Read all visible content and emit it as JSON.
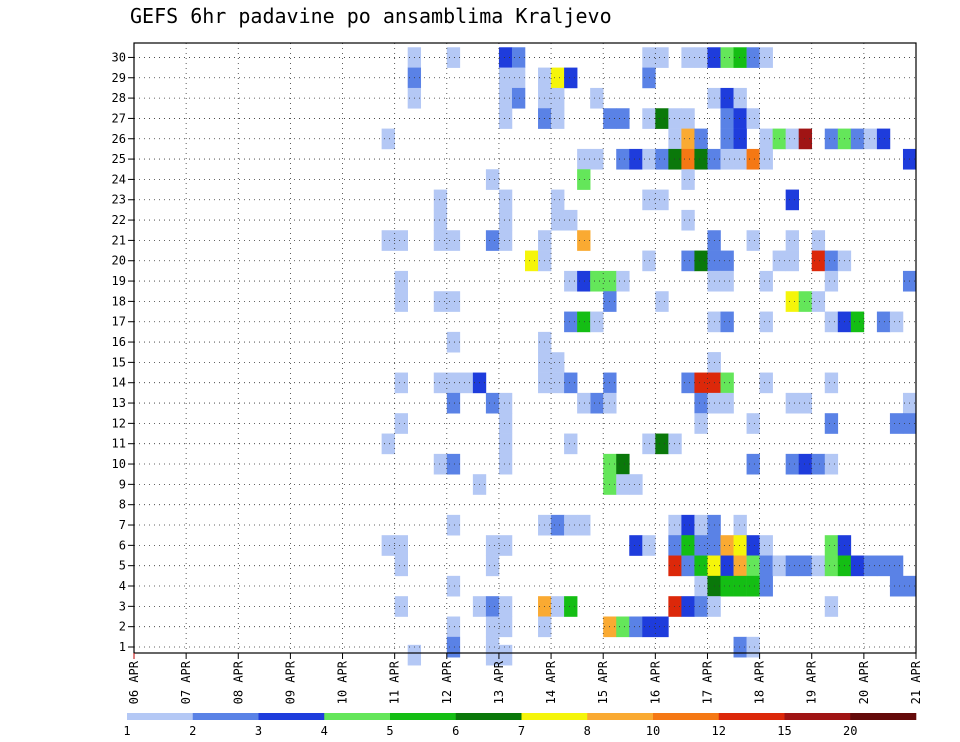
{
  "chart_data": {
    "type": "heatmap",
    "title": "GEFS 6hr padavine po ansamblima Kraljevo",
    "x_tick_labels": [
      "06 APR",
      "07 APR",
      "08 APR",
      "09 APR",
      "10 APR",
      "11 APR",
      "12 APR",
      "13 APR",
      "14 APR",
      "15 APR",
      "16 APR",
      "17 APR",
      "18 APR",
      "19 APR",
      "20 APR",
      "21 APR"
    ],
    "y_tick_labels": [
      "1",
      "2",
      "3",
      "4",
      "5",
      "6",
      "7",
      "8",
      "9",
      "10",
      "11",
      "12",
      "13",
      "14",
      "15",
      "16",
      "17",
      "18",
      "19",
      "20",
      "21",
      "22",
      "23",
      "24",
      "25",
      "26",
      "27",
      "28",
      "29",
      "30"
    ],
    "members": 30,
    "steps_per_day": 4,
    "first_day": "06 APR",
    "grid": "dotted",
    "legend": {
      "position": "bottom",
      "labels": [
        "1",
        "2",
        "3",
        "4",
        "5",
        "6",
        "7",
        "8",
        "10",
        "12",
        "15",
        "20"
      ],
      "colors": [
        "#b4c8f5",
        "#5a82e6",
        "#1e3cdc",
        "#64e65a",
        "#14be14",
        "#0a780a",
        "#f5f50a",
        "#faaa32",
        "#f57814",
        "#dc280a",
        "#a01414",
        "#640a0a"
      ]
    },
    "level_colors": {
      "1": "#b4c8f5",
      "2": "#5a82e6",
      "3": "#1e3cdc",
      "4": "#64e65a",
      "5": "#14be14",
      "6": "#0a780a",
      "7": "#f5f50a",
      "8": "#faaa32",
      "9": "#f57814",
      "10": "#dc280a",
      "11": "#a01414"
    },
    "cells": [
      [
        30,
        21,
        1
      ],
      [
        30,
        24,
        1
      ],
      [
        30,
        28,
        3
      ],
      [
        30,
        29,
        2
      ],
      [
        30,
        39,
        1
      ],
      [
        30,
        40,
        1
      ],
      [
        30,
        42,
        1
      ],
      [
        30,
        43,
        1
      ],
      [
        30,
        44,
        3
      ],
      [
        30,
        45,
        4
      ],
      [
        30,
        46,
        5
      ],
      [
        30,
        47,
        2
      ],
      [
        30,
        48,
        1
      ],
      [
        29,
        21,
        2
      ],
      [
        29,
        28,
        1
      ],
      [
        29,
        29,
        1
      ],
      [
        29,
        31,
        1
      ],
      [
        29,
        32,
        7
      ],
      [
        29,
        33,
        3
      ],
      [
        29,
        39,
        2
      ],
      [
        28,
        21,
        1
      ],
      [
        28,
        28,
        1
      ],
      [
        28,
        29,
        2
      ],
      [
        28,
        31,
        1
      ],
      [
        28,
        32,
        1
      ],
      [
        28,
        35,
        1
      ],
      [
        28,
        44,
        1
      ],
      [
        28,
        45,
        3
      ],
      [
        28,
        46,
        1
      ],
      [
        27,
        28,
        1
      ],
      [
        27,
        31,
        2
      ],
      [
        27,
        32,
        1
      ],
      [
        27,
        36,
        2
      ],
      [
        27,
        37,
        2
      ],
      [
        27,
        39,
        1
      ],
      [
        27,
        40,
        6
      ],
      [
        27,
        41,
        1
      ],
      [
        27,
        42,
        1
      ],
      [
        27,
        45,
        2
      ],
      [
        27,
        46,
        3
      ],
      [
        27,
        47,
        1
      ],
      [
        26,
        19,
        1
      ],
      [
        26,
        41,
        1
      ],
      [
        26,
        42,
        8
      ],
      [
        26,
        43,
        2
      ],
      [
        26,
        45,
        2
      ],
      [
        26,
        46,
        3
      ],
      [
        26,
        48,
        1
      ],
      [
        26,
        49,
        4
      ],
      [
        26,
        50,
        1
      ],
      [
        26,
        51,
        11
      ],
      [
        26,
        53,
        2
      ],
      [
        26,
        54,
        4
      ],
      [
        26,
        55,
        2
      ],
      [
        26,
        56,
        1
      ],
      [
        26,
        57,
        3
      ],
      [
        25,
        34,
        1
      ],
      [
        25,
        35,
        1
      ],
      [
        25,
        37,
        2
      ],
      [
        25,
        38,
        3
      ],
      [
        25,
        39,
        1
      ],
      [
        25,
        40,
        2
      ],
      [
        25,
        41,
        6
      ],
      [
        25,
        42,
        9
      ],
      [
        25,
        43,
        6
      ],
      [
        25,
        44,
        2
      ],
      [
        25,
        45,
        1
      ],
      [
        25,
        46,
        1
      ],
      [
        25,
        47,
        9
      ],
      [
        25,
        48,
        1
      ],
      [
        25,
        59,
        3
      ],
      [
        24,
        27,
        1
      ],
      [
        24,
        34,
        4
      ],
      [
        24,
        42,
        1
      ],
      [
        23,
        23,
        1
      ],
      [
        23,
        28,
        1
      ],
      [
        23,
        32,
        1
      ],
      [
        23,
        39,
        1
      ],
      [
        23,
        40,
        1
      ],
      [
        23,
        50,
        3
      ],
      [
        22,
        23,
        1
      ],
      [
        22,
        28,
        1
      ],
      [
        22,
        32,
        1
      ],
      [
        22,
        33,
        1
      ],
      [
        22,
        42,
        1
      ],
      [
        21,
        19,
        1
      ],
      [
        21,
        20,
        1
      ],
      [
        21,
        23,
        1
      ],
      [
        21,
        24,
        1
      ],
      [
        21,
        27,
        2
      ],
      [
        21,
        28,
        1
      ],
      [
        21,
        31,
        1
      ],
      [
        21,
        34,
        8
      ],
      [
        21,
        44,
        2
      ],
      [
        21,
        47,
        1
      ],
      [
        21,
        50,
        1
      ],
      [
        21,
        52,
        1
      ],
      [
        20,
        30,
        7
      ],
      [
        20,
        31,
        1
      ],
      [
        20,
        39,
        1
      ],
      [
        20,
        42,
        2
      ],
      [
        20,
        43,
        6
      ],
      [
        20,
        44,
        2
      ],
      [
        20,
        45,
        2
      ],
      [
        20,
        49,
        1
      ],
      [
        20,
        50,
        1
      ],
      [
        20,
        52,
        10
      ],
      [
        20,
        53,
        2
      ],
      [
        20,
        54,
        1
      ],
      [
        19,
        20,
        1
      ],
      [
        19,
        33,
        1
      ],
      [
        19,
        34,
        3
      ],
      [
        19,
        35,
        4
      ],
      [
        19,
        36,
        4
      ],
      [
        19,
        37,
        1
      ],
      [
        19,
        44,
        1
      ],
      [
        19,
        45,
        1
      ],
      [
        19,
        48,
        1
      ],
      [
        19,
        53,
        1
      ],
      [
        19,
        59,
        2
      ],
      [
        18,
        20,
        1
      ],
      [
        18,
        23,
        1
      ],
      [
        18,
        24,
        1
      ],
      [
        18,
        36,
        2
      ],
      [
        18,
        40,
        1
      ],
      [
        18,
        50,
        7
      ],
      [
        18,
        51,
        4
      ],
      [
        18,
        52,
        1
      ],
      [
        17,
        33,
        2
      ],
      [
        17,
        34,
        5
      ],
      [
        17,
        35,
        1
      ],
      [
        17,
        44,
        1
      ],
      [
        17,
        45,
        2
      ],
      [
        17,
        48,
        1
      ],
      [
        17,
        53,
        1
      ],
      [
        17,
        54,
        3
      ],
      [
        17,
        55,
        5
      ],
      [
        17,
        57,
        2
      ],
      [
        17,
        58,
        1
      ],
      [
        16,
        24,
        1
      ],
      [
        16,
        31,
        1
      ],
      [
        15,
        31,
        1
      ],
      [
        15,
        32,
        1
      ],
      [
        15,
        44,
        1
      ],
      [
        15,
        44,
        1
      ],
      [
        14,
        20,
        1
      ],
      [
        14,
        23,
        1
      ],
      [
        14,
        24,
        1
      ],
      [
        14,
        25,
        1
      ],
      [
        14,
        26,
        3
      ],
      [
        14,
        31,
        1
      ],
      [
        14,
        32,
        1
      ],
      [
        14,
        33,
        2
      ],
      [
        14,
        36,
        2
      ],
      [
        14,
        42,
        2
      ],
      [
        14,
        43,
        10
      ],
      [
        14,
        44,
        10
      ],
      [
        14,
        45,
        4
      ],
      [
        14,
        48,
        1
      ],
      [
        14,
        53,
        1
      ],
      [
        13,
        24,
        2
      ],
      [
        13,
        27,
        2
      ],
      [
        13,
        28,
        1
      ],
      [
        13,
        35,
        2
      ],
      [
        13,
        36,
        1
      ],
      [
        13,
        34,
        1
      ],
      [
        13,
        43,
        2
      ],
      [
        13,
        44,
        1
      ],
      [
        13,
        45,
        1
      ],
      [
        13,
        50,
        1
      ],
      [
        13,
        51,
        1
      ],
      [
        13,
        59,
        1
      ],
      [
        12,
        20,
        1
      ],
      [
        12,
        28,
        1
      ],
      [
        12,
        43,
        1
      ],
      [
        12,
        47,
        1
      ],
      [
        12,
        53,
        2
      ],
      [
        12,
        58,
        2
      ],
      [
        12,
        59,
        2
      ],
      [
        11,
        19,
        1
      ],
      [
        11,
        28,
        1
      ],
      [
        11,
        33,
        1
      ],
      [
        11,
        39,
        1
      ],
      [
        11,
        40,
        6
      ],
      [
        11,
        41,
        1
      ],
      [
        10,
        23,
        1
      ],
      [
        10,
        24,
        2
      ],
      [
        10,
        28,
        1
      ],
      [
        10,
        36,
        4
      ],
      [
        10,
        37,
        6
      ],
      [
        10,
        47,
        2
      ],
      [
        10,
        50,
        2
      ],
      [
        10,
        51,
        3
      ],
      [
        10,
        52,
        2
      ],
      [
        10,
        53,
        1
      ],
      [
        9,
        26,
        1
      ],
      [
        9,
        36,
        4
      ],
      [
        9,
        37,
        1
      ],
      [
        9,
        38,
        1
      ],
      [
        7,
        24,
        1
      ],
      [
        7,
        31,
        1
      ],
      [
        7,
        32,
        2
      ],
      [
        7,
        33,
        1
      ],
      [
        7,
        34,
        1
      ],
      [
        7,
        41,
        1
      ],
      [
        7,
        42,
        3
      ],
      [
        7,
        43,
        1
      ],
      [
        7,
        44,
        2
      ],
      [
        7,
        46,
        1
      ],
      [
        6,
        19,
        1
      ],
      [
        6,
        20,
        1
      ],
      [
        6,
        27,
        1
      ],
      [
        6,
        28,
        1
      ],
      [
        6,
        38,
        3
      ],
      [
        6,
        39,
        1
      ],
      [
        6,
        41,
        2
      ],
      [
        6,
        42,
        5
      ],
      [
        6,
        43,
        2
      ],
      [
        6,
        44,
        2
      ],
      [
        6,
        45,
        8
      ],
      [
        6,
        46,
        7
      ],
      [
        6,
        47,
        3
      ],
      [
        6,
        48,
        1
      ],
      [
        6,
        53,
        4
      ],
      [
        6,
        54,
        3
      ],
      [
        5,
        20,
        1
      ],
      [
        5,
        27,
        1
      ],
      [
        5,
        41,
        10
      ],
      [
        5,
        42,
        2
      ],
      [
        5,
        43,
        5
      ],
      [
        5,
        44,
        7
      ],
      [
        5,
        45,
        3
      ],
      [
        5,
        46,
        8
      ],
      [
        5,
        47,
        4
      ],
      [
        5,
        48,
        2
      ],
      [
        5,
        49,
        1
      ],
      [
        5,
        50,
        2
      ],
      [
        5,
        51,
        2
      ],
      [
        5,
        52,
        1
      ],
      [
        5,
        53,
        4
      ],
      [
        5,
        54,
        5
      ],
      [
        5,
        55,
        3
      ],
      [
        5,
        56,
        2
      ],
      [
        5,
        57,
        2
      ],
      [
        5,
        58,
        2
      ],
      [
        4,
        24,
        1
      ],
      [
        4,
        43,
        1
      ],
      [
        4,
        44,
        6
      ],
      [
        4,
        45,
        5
      ],
      [
        4,
        46,
        5
      ],
      [
        4,
        47,
        5
      ],
      [
        4,
        48,
        2
      ],
      [
        4,
        58,
        2
      ],
      [
        4,
        59,
        2
      ],
      [
        3,
        20,
        1
      ],
      [
        3,
        26,
        1
      ],
      [
        3,
        27,
        2
      ],
      [
        3,
        28,
        1
      ],
      [
        3,
        31,
        8
      ],
      [
        3,
        32,
        1
      ],
      [
        3,
        33,
        5
      ],
      [
        3,
        41,
        10
      ],
      [
        3,
        42,
        3
      ],
      [
        3,
        43,
        2
      ],
      [
        3,
        44,
        1
      ],
      [
        3,
        53,
        1
      ],
      [
        2,
        24,
        1
      ],
      [
        2,
        27,
        1
      ],
      [
        2,
        28,
        1
      ],
      [
        2,
        31,
        1
      ],
      [
        2,
        36,
        8
      ],
      [
        2,
        37,
        4
      ],
      [
        2,
        38,
        2
      ],
      [
        2,
        39,
        3
      ],
      [
        2,
        40,
        3
      ],
      [
        1,
        24,
        2
      ],
      [
        1,
        27,
        1
      ],
      [
        1,
        46,
        2
      ],
      [
        1,
        47,
        1
      ],
      [
        0,
        21,
        1
      ],
      [
        0,
        27,
        1
      ],
      [
        0,
        28,
        1
      ]
    ]
  }
}
